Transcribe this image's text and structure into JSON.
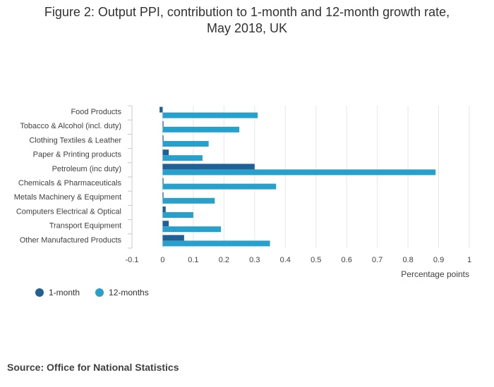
{
  "title_line1": "Figure 2: Output PPI, contribution to 1-month and 12-month growth rate,",
  "title_line2": "May 2018, UK",
  "source": "Source: Office for National Statistics",
  "colors": {
    "series_1_month": "#206095",
    "series_12_months": "#27a0cc",
    "grid": "#e6e6e6",
    "axis_text": "#414042"
  },
  "chart_data": {
    "type": "bar",
    "orientation": "horizontal",
    "categories": [
      "Food Products",
      "Tobacco & Alcohol (incl. duty)",
      "Clothing Textiles & Leather",
      "Paper & Printing products",
      "Petroleum (inc duty)",
      "Chemicals & Pharmaceuticals",
      "Metals Machinery & Equipment",
      "Computers Electrical & Optical",
      "Transport Equipment",
      "Other Manufactured Products"
    ],
    "series": [
      {
        "name": "1-month",
        "values": [
          -0.01,
          0.0,
          0.0,
          0.02,
          0.3,
          0.0,
          0.0,
          0.01,
          0.02,
          0.07
        ]
      },
      {
        "name": "12-months",
        "values": [
          0.31,
          0.25,
          0.15,
          0.13,
          0.89,
          0.37,
          0.17,
          0.1,
          0.19,
          0.35
        ]
      }
    ],
    "xlabel": "Percentage points",
    "xlim": [
      -0.1,
      1
    ],
    "xticks": [
      "-0.1",
      "0",
      "0.1",
      "0.2",
      "0.3",
      "0.4",
      "0.5",
      "0.6",
      "0.7",
      "0.8",
      "0.9",
      "1"
    ],
    "grid": true,
    "legend_position": "bottom-left"
  }
}
